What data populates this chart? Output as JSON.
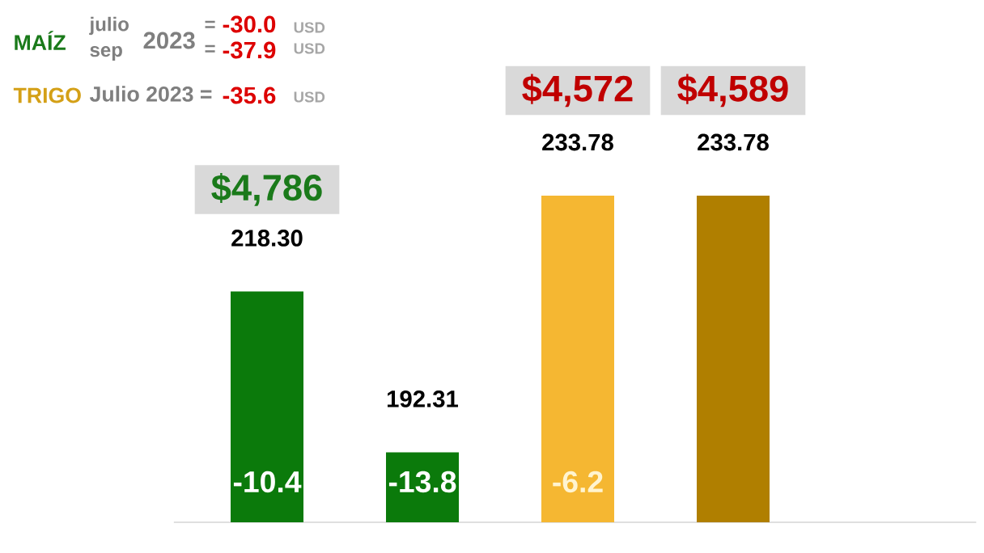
{
  "chart_data": {
    "type": "bar",
    "categories": [
      null,
      null,
      null,
      null
    ],
    "values": [
      218.3,
      192.31,
      233.78,
      233.78
    ],
    "colors": [
      "#0b7a0b",
      "#0b7a0b",
      "#f5b732",
      "#b07f00"
    ],
    "value_labels": [
      "218.30",
      "192.31",
      "233.78",
      "233.78"
    ],
    "ylim": [
      181,
      233.78
    ],
    "annotations": [
      "MAÍZ",
      "julio",
      "sep",
      "2023",
      "=",
      "-30.0",
      "USD",
      "=",
      "-37.9",
      "USD",
      "TRIGO",
      "Julio 2023 =",
      "-35.6",
      "USD",
      "$4,786",
      "$4,572",
      "$4,589",
      "-10.4",
      "-13.8",
      "-6.2"
    ]
  }
}
